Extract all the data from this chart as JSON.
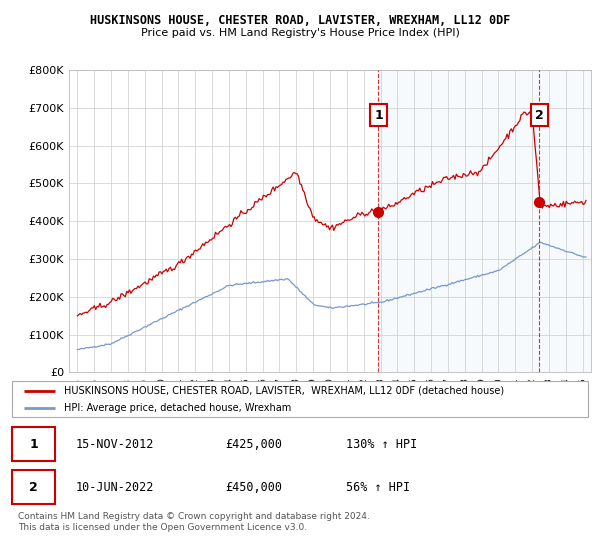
{
  "title": "HUSKINSONS HOUSE, CHESTER ROAD, LAVISTER, WREXHAM, LL12 0DF",
  "subtitle": "Price paid vs. HM Land Registry's House Price Index (HPI)",
  "ylabel_ticks": [
    "£0",
    "£100K",
    "£200K",
    "£300K",
    "£400K",
    "£500K",
    "£600K",
    "£700K",
    "£800K"
  ],
  "ytick_values": [
    0,
    100000,
    200000,
    300000,
    400000,
    500000,
    600000,
    700000,
    800000
  ],
  "ylim": [
    0,
    800000
  ],
  "hpi_color": "#7799cc",
  "price_color": "#cc0000",
  "marker1_year": 2012.88,
  "marker1_price": 425000,
  "marker2_year": 2022.44,
  "marker2_price": 450000,
  "shade_color": "#d8e8f5",
  "legend_line1": "HUSKINSONS HOUSE, CHESTER ROAD, LAVISTER,  WREXHAM, LL12 0DF (detached house)",
  "legend_line2": "HPI: Average price, detached house, Wrexham",
  "annotation1_date": "15-NOV-2012",
  "annotation1_price": "£425,000",
  "annotation1_hpi": "130% ↑ HPI",
  "annotation2_date": "10-JUN-2022",
  "annotation2_price": "£450,000",
  "annotation2_hpi": "56% ↑ HPI",
  "footer": "Contains HM Land Registry data © Crown copyright and database right 2024.\nThis data is licensed under the Open Government Licence v3.0.",
  "bg_color": "#ffffff",
  "plot_bg_color": "#ffffff",
  "grid_color": "#cccccc"
}
